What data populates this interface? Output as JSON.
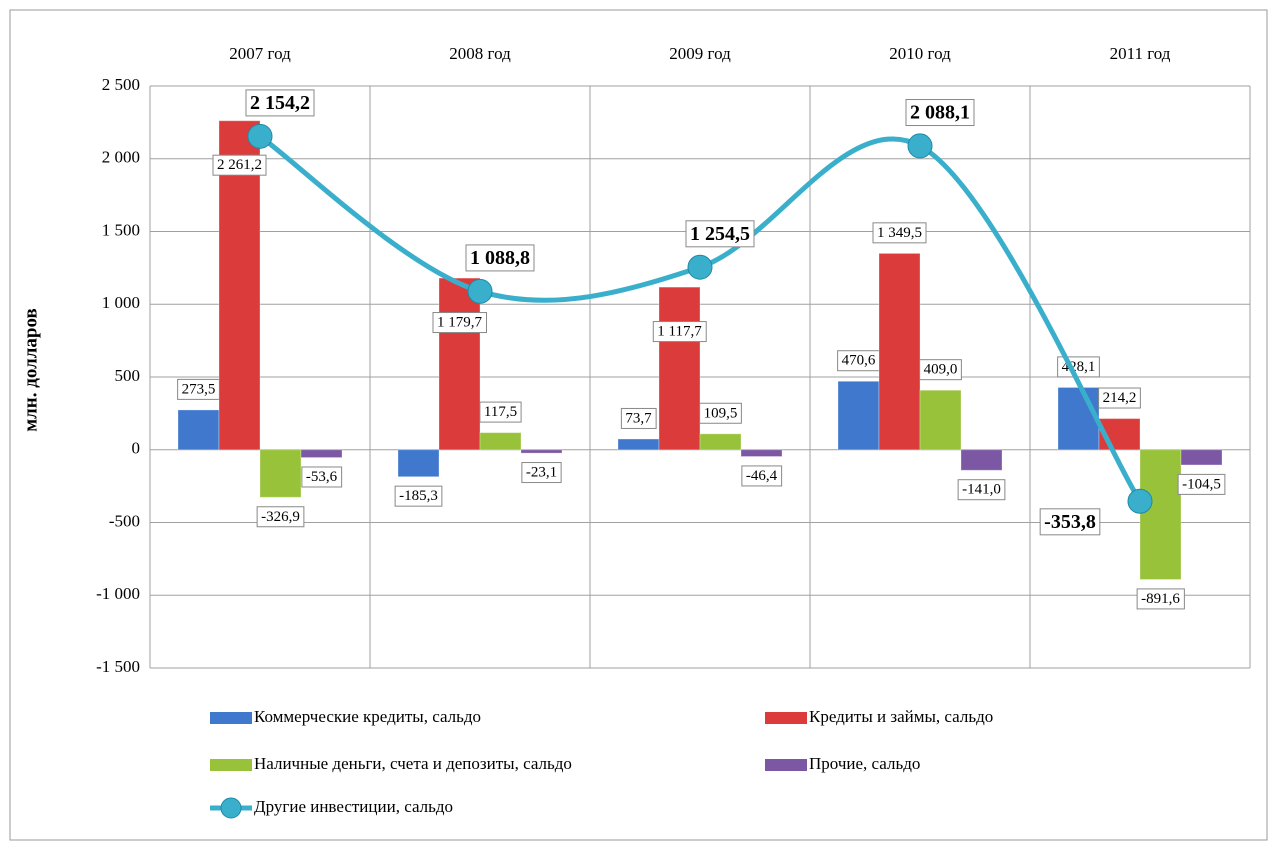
{
  "chart_data": {
    "type": "bar",
    "y_label": "млн. долларов",
    "categories": [
      "2007 год",
      "2008 год",
      "2009 год",
      "2010 год",
      "2011 год"
    ],
    "ylim": [
      -1500,
      2500
    ],
    "yticks": [
      {
        "value": -1500,
        "label": "-1 500"
      },
      {
        "value": -1000,
        "label": "-1 000"
      },
      -500,
      0,
      500,
      {
        "value": 1000,
        "label": "1 000"
      },
      {
        "value": 1500,
        "label": "1 500"
      },
      {
        "value": 2000,
        "label": "2 000"
      },
      {
        "value": 2500,
        "label": "2 500"
      }
    ],
    "grid": true,
    "series": [
      {
        "name": "Коммерческие кредиты, сальдо",
        "color": "#3f78cc",
        "values": [
          273.5,
          -185.3,
          73.7,
          470.6,
          428.1
        ],
        "value_labels": [
          "273,5",
          "-185,3",
          "73,7",
          "470,6",
          "428,1"
        ]
      },
      {
        "name": "Кредиты и займы, сальдо",
        "color": "#dc3b3b",
        "values": [
          2261.2,
          1179.7,
          1117.7,
          1349.5,
          214.2
        ],
        "value_labels": [
          "2 261,2",
          "1 179,7",
          "1 117,7",
          "1 349,5",
          "214,2"
        ]
      },
      {
        "name": "Наличные деньги, счета и депозиты, сальдо",
        "color": "#98c23a",
        "values": [
          -326.9,
          117.5,
          109.5,
          409.0,
          -891.6
        ],
        "value_labels": [
          "-326,9",
          "117,5",
          "109,5",
          "409,0",
          "-891,6"
        ]
      },
      {
        "name": "Прочие, сальдо",
        "color": "#7c57a4",
        "values": [
          -53.6,
          -23.1,
          -46.4,
          -141.0,
          -104.5
        ],
        "value_labels": [
          "-53,6",
          "-23,1",
          "-46,4",
          "-141,0",
          "-104,5"
        ]
      },
      {
        "name": "Другие инвестиции, сальдо",
        "type": "line",
        "color": "#3aafcc",
        "values": [
          2154.2,
          1088.8,
          1254.5,
          2088.1,
          -353.8
        ],
        "value_labels": [
          "2 154,2",
          "1 088,8",
          "1 254,5",
          "2 088,1",
          "-353,8"
        ]
      }
    ]
  }
}
